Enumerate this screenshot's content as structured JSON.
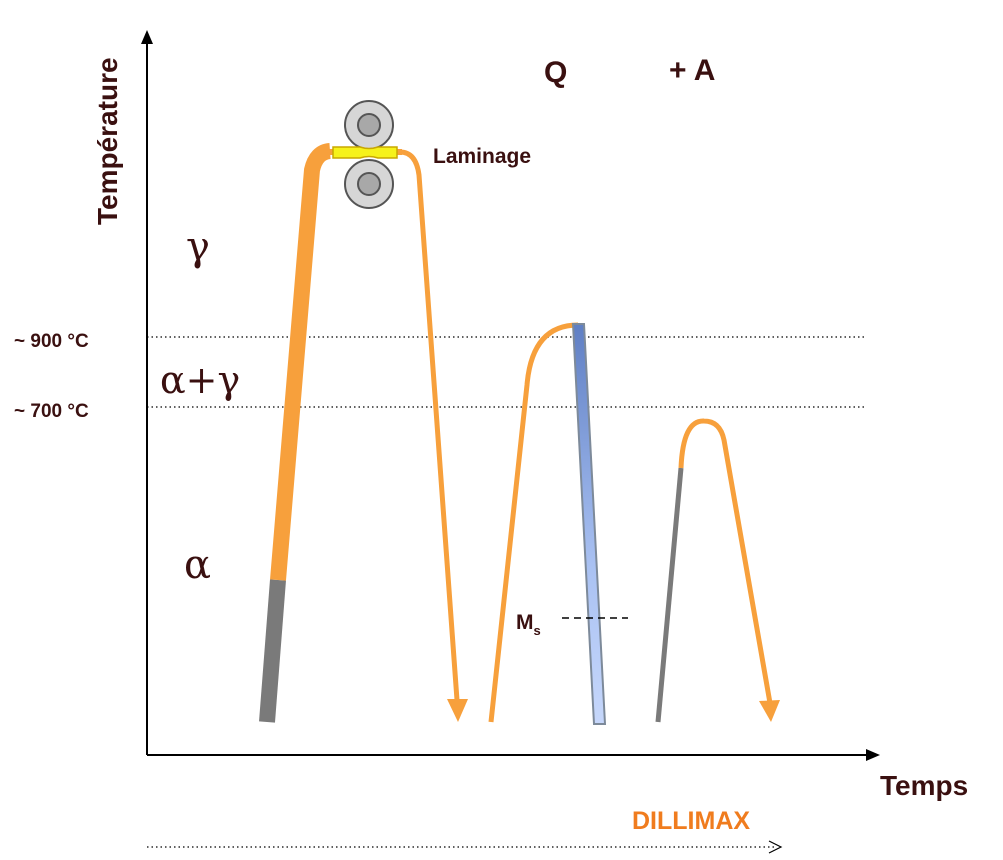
{
  "axes": {
    "y_label": "Température",
    "x_label": "Temps"
  },
  "temperatures": {
    "t900": "~ 900 °C",
    "t700": "~ 700 °C"
  },
  "phases": {
    "gamma": "γ",
    "alpha_gamma": "α+γ",
    "alpha": "α"
  },
  "labels": {
    "laminage": "Laminage",
    "q": "Q",
    "plus_a": "+ A",
    "ms_main": "M",
    "ms_sub": "s",
    "dillimax": "DILLIMAX"
  },
  "colors": {
    "orange": "#f7a03c",
    "grey": "#7a7a7a",
    "blue": "#7f9fd8",
    "roller": "#cfcfcf",
    "strip": "#f6f21a",
    "text": "#3a1010",
    "dillimax": "#f07c1e"
  }
}
